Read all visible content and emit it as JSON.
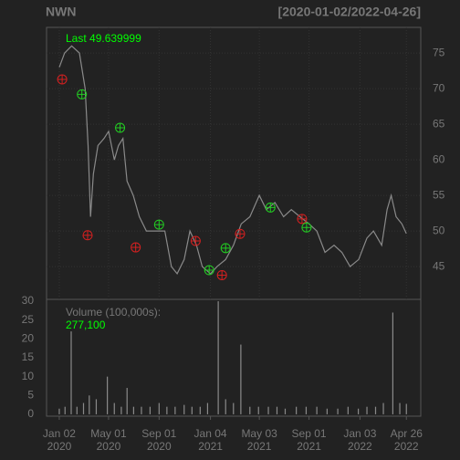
{
  "chart_data": [
    {
      "type": "line",
      "title": "NWN",
      "subtitle": "[2020-01-02/2022-04-26]",
      "last_text": "Last 49.639999",
      "color": "#8a8a8a",
      "x": [
        "2020-01-02",
        "2020-01-15",
        "2020-02-01",
        "2020-02-20",
        "2020-03-05",
        "2020-03-12",
        "2020-03-18",
        "2020-03-25",
        "2020-04-05",
        "2020-04-20",
        "2020-05-01",
        "2020-05-15",
        "2020-05-25",
        "2020-06-05",
        "2020-06-15",
        "2020-06-30",
        "2020-07-15",
        "2020-08-01",
        "2020-08-15",
        "2020-09-01",
        "2020-09-15",
        "2020-10-01",
        "2020-10-15",
        "2020-11-01",
        "2020-11-15",
        "2020-12-01",
        "2020-12-15",
        "2021-01-04",
        "2021-01-20",
        "2021-02-10",
        "2021-03-01",
        "2021-03-20",
        "2021-04-10",
        "2021-05-03",
        "2021-05-20",
        "2021-06-10",
        "2021-07-01",
        "2021-07-20",
        "2021-08-10",
        "2021-09-01",
        "2021-09-20",
        "2021-10-10",
        "2021-11-01",
        "2021-11-20",
        "2021-12-10",
        "2021-12-31",
        "2022-01-20",
        "2022-02-05",
        "2022-02-25",
        "2022-03-10",
        "2022-03-20",
        "2022-04-01",
        "2022-04-15",
        "2022-04-26"
      ],
      "values": [
        73,
        75,
        76,
        75,
        70,
        62,
        52,
        58,
        62,
        63,
        64,
        60,
        62,
        63,
        57,
        55,
        52,
        50,
        50,
        50,
        50,
        45,
        44,
        46,
        50,
        48,
        45,
        44,
        45,
        46,
        48,
        51,
        52,
        55,
        53,
        54,
        52,
        53,
        52,
        51,
        50,
        47,
        48,
        47,
        45,
        46,
        49,
        50,
        48,
        53,
        55,
        52,
        51,
        49.64
      ],
      "markers": [
        {
          "color": "#d42020",
          "x": [
            "2020-01-09",
            "2020-03-11",
            "2020-07-06",
            "2020-11-29",
            "2021-02-01",
            "2021-03-17",
            "2021-08-15"
          ],
          "values": [
            71.3,
            49.4,
            47.7,
            48.6,
            43.8,
            49.6,
            51.7
          ]
        },
        {
          "color": "#22cc22",
          "x": [
            "2020-02-26",
            "2020-05-29",
            "2020-09-01",
            "2021-01-01",
            "2021-02-10",
            "2021-05-30",
            "2021-08-26"
          ],
          "values": [
            69.2,
            64.5,
            50.9,
            44.5,
            47.6,
            53.3,
            50.5
          ]
        }
      ],
      "xlim": [
        "2019-12-02",
        "2022-05-31"
      ],
      "ylim": [
        40.4,
        78.6
      ],
      "yticks": [
        45,
        50,
        55,
        60,
        65,
        70,
        75
      ],
      "grid": true
    },
    {
      "type": "bar",
      "label": "Volume (100,000s):",
      "last_text": "277,100",
      "color": "#8a8a8a",
      "x": [
        "2020-01-02",
        "2020-01-16",
        "2020-01-31",
        "2020-02-14",
        "2020-03-01",
        "2020-03-15",
        "2020-04-01",
        "2020-04-28",
        "2020-05-15",
        "2020-06-01",
        "2020-06-15",
        "2020-07-01",
        "2020-07-20",
        "2020-08-10",
        "2020-09-01",
        "2020-09-20",
        "2020-10-10",
        "2020-11-01",
        "2020-11-20",
        "2020-12-10",
        "2020-12-28",
        "2021-01-23",
        "2021-02-10",
        "2021-03-01",
        "2021-03-19",
        "2021-04-10",
        "2021-05-01",
        "2021-05-25",
        "2021-06-15",
        "2021-07-05",
        "2021-08-01",
        "2021-08-25",
        "2021-09-20",
        "2021-10-15",
        "2021-11-10",
        "2021-12-05",
        "2021-12-30",
        "2022-01-20",
        "2022-02-10",
        "2022-03-01",
        "2022-03-24",
        "2022-04-10",
        "2022-04-26"
      ],
      "values": [
        1.5,
        2,
        22,
        2,
        3,
        5,
        4,
        10,
        3,
        2,
        7,
        2,
        2,
        2,
        3,
        2,
        2,
        2.5,
        2,
        2,
        3,
        30,
        4,
        3,
        18.5,
        2,
        2,
        2,
        2,
        1.5,
        2,
        2,
        2,
        1.5,
        1.5,
        2,
        1.5,
        2,
        2,
        3,
        27,
        3,
        2.771
      ],
      "xlim": [
        "2019-12-02",
        "2022-05-31"
      ],
      "ylim": [
        -0.5,
        30.5
      ],
      "yticks": [
        0,
        5,
        10,
        15,
        20,
        25,
        30
      ],
      "xticks": [
        {
          "value": "2020-01-02",
          "label": "Jan 02 2020"
        },
        {
          "value": "2020-05-01",
          "label": "May 01 2020"
        },
        {
          "value": "2020-09-01",
          "label": "Sep 01 2020"
        },
        {
          "value": "2021-01-04",
          "label": "Jan 04 2021"
        },
        {
          "value": "2021-05-03",
          "label": "May 03 2021"
        },
        {
          "value": "2021-09-01",
          "label": "Sep 01 2021"
        },
        {
          "value": "2022-01-03",
          "label": "Jan 03 2022"
        },
        {
          "value": "2022-04-26",
          "label": "Apr 26 2022"
        }
      ]
    }
  ]
}
